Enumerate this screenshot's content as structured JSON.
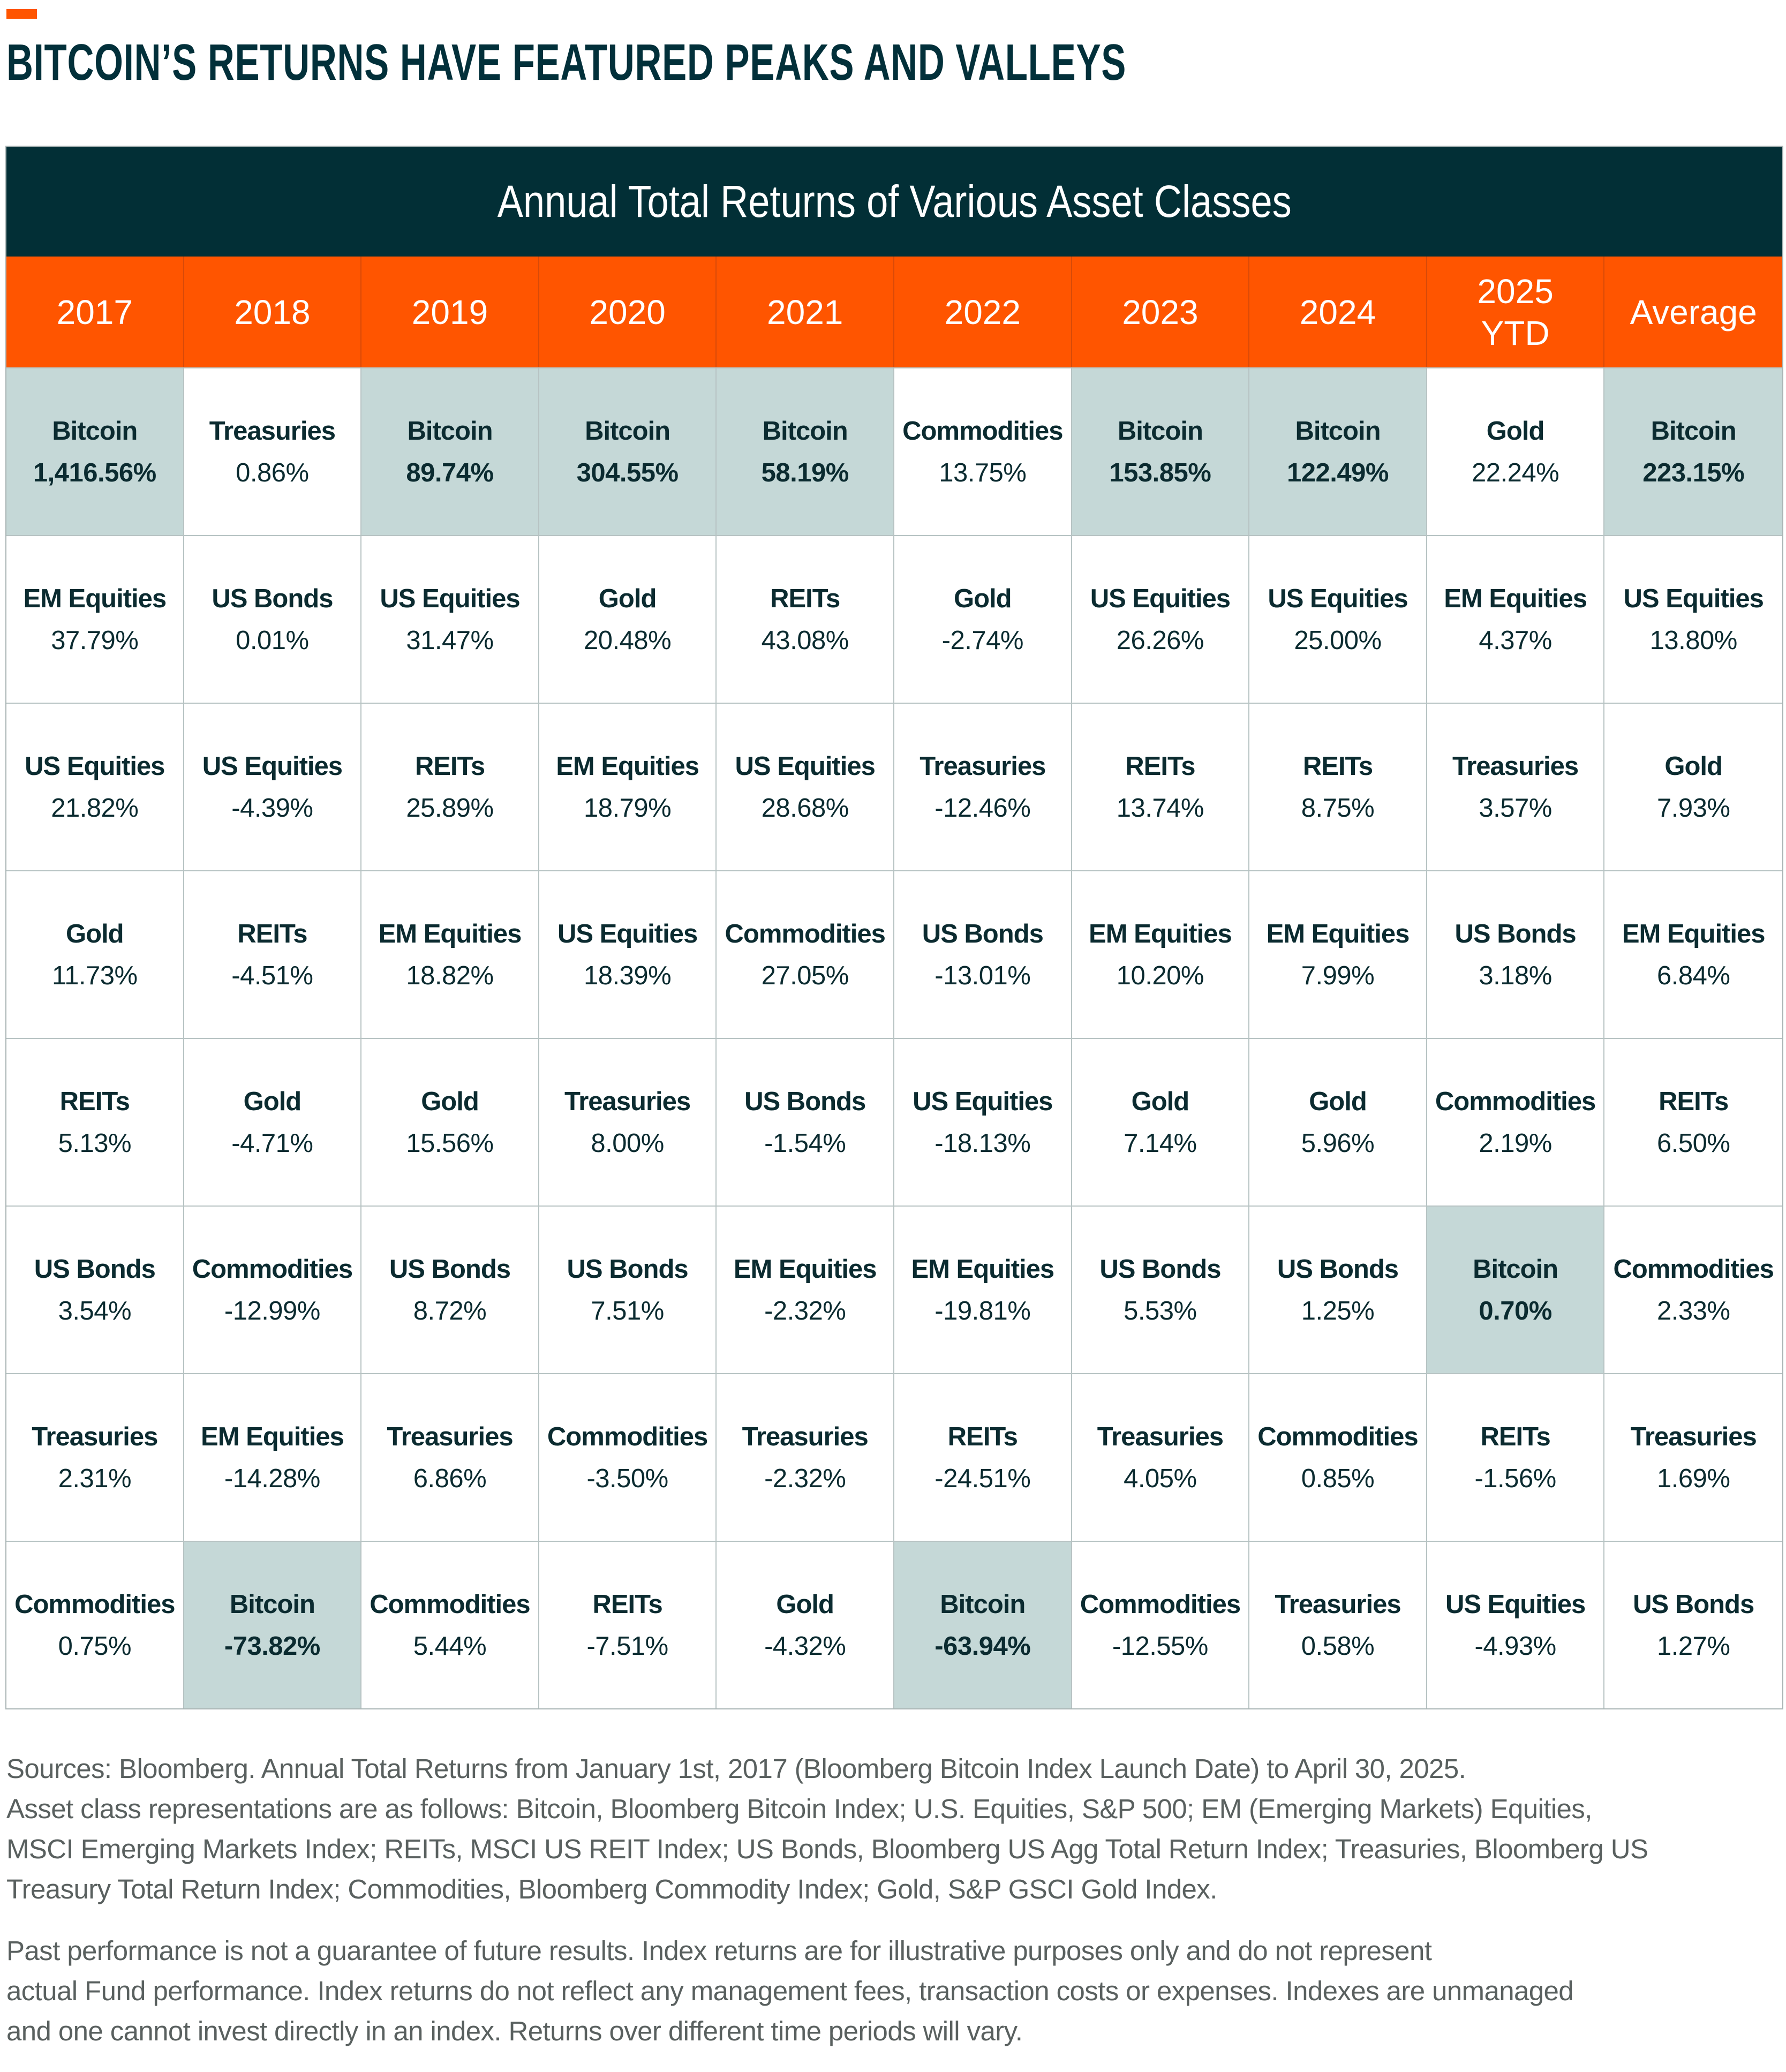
{
  "header": {
    "title": "BITCOIN’S RETURNS HAVE FEATURED PEAKS AND VALLEYS",
    "accent_color": "#ff5500"
  },
  "table": {
    "title": "Annual Total Returns of Various Asset Classes",
    "colors": {
      "title_bg": "#022f36",
      "header_bg": "#ff5500",
      "highlight_bg": "#c5d8d7"
    },
    "columns": [
      {
        "label": "2017",
        "cells": [
          {
            "name": "Bitcoin",
            "value": "1,416.56%",
            "highlight": true
          },
          {
            "name": "EM Equities",
            "value": "37.79%"
          },
          {
            "name": "US Equities",
            "value": "21.82%"
          },
          {
            "name": "Gold",
            "value": "11.73%"
          },
          {
            "name": "REITs",
            "value": "5.13%"
          },
          {
            "name": "US Bonds",
            "value": "3.54%"
          },
          {
            "name": "Treasuries",
            "value": "2.31%"
          },
          {
            "name": "Commodities",
            "value": "0.75%"
          }
        ]
      },
      {
        "label": "2018",
        "cells": [
          {
            "name": "Treasuries",
            "value": "0.86%"
          },
          {
            "name": "US Bonds",
            "value": "0.01%"
          },
          {
            "name": "US Equities",
            "value": "-4.39%"
          },
          {
            "name": "REITs",
            "value": "-4.51%"
          },
          {
            "name": "Gold",
            "value": "-4.71%"
          },
          {
            "name": "Commodities",
            "value": "-12.99%"
          },
          {
            "name": "EM Equities",
            "value": "-14.28%"
          },
          {
            "name": "Bitcoin",
            "value": "-73.82%",
            "highlight": true
          }
        ]
      },
      {
        "label": "2019",
        "cells": [
          {
            "name": "Bitcoin",
            "value": "89.74%",
            "highlight": true
          },
          {
            "name": "US Equities",
            "value": "31.47%"
          },
          {
            "name": "REITs",
            "value": "25.89%"
          },
          {
            "name": "EM Equities",
            "value": "18.82%"
          },
          {
            "name": "Gold",
            "value": "15.56%"
          },
          {
            "name": "US Bonds",
            "value": "8.72%"
          },
          {
            "name": "Treasuries",
            "value": "6.86%"
          },
          {
            "name": "Commodities",
            "value": "5.44%"
          }
        ]
      },
      {
        "label": "2020",
        "cells": [
          {
            "name": "Bitcoin",
            "value": "304.55%",
            "highlight": true
          },
          {
            "name": "Gold",
            "value": "20.48%"
          },
          {
            "name": "EM Equities",
            "value": "18.79%"
          },
          {
            "name": "US Equities",
            "value": "18.39%"
          },
          {
            "name": "Treasuries",
            "value": "8.00%"
          },
          {
            "name": "US Bonds",
            "value": "7.51%"
          },
          {
            "name": "Commodities",
            "value": "-3.50%"
          },
          {
            "name": "REITs",
            "value": "-7.51%"
          }
        ]
      },
      {
        "label": "2021",
        "cells": [
          {
            "name": "Bitcoin",
            "value": "58.19%",
            "highlight": true
          },
          {
            "name": "REITs",
            "value": "43.08%"
          },
          {
            "name": "US Equities",
            "value": "28.68%"
          },
          {
            "name": "Commodities",
            "value": "27.05%"
          },
          {
            "name": "US Bonds",
            "value": "-1.54%"
          },
          {
            "name": "EM Equities",
            "value": "-2.32%"
          },
          {
            "name": "Treasuries",
            "value": "-2.32%"
          },
          {
            "name": "Gold",
            "value": "-4.32%"
          }
        ]
      },
      {
        "label": "2022",
        "cells": [
          {
            "name": "Commodities",
            "value": "13.75%"
          },
          {
            "name": "Gold",
            "value": "-2.74%"
          },
          {
            "name": "Treasuries",
            "value": "-12.46%"
          },
          {
            "name": "US Bonds",
            "value": "-13.01%"
          },
          {
            "name": "US Equities",
            "value": "-18.13%"
          },
          {
            "name": "EM Equities",
            "value": "-19.81%"
          },
          {
            "name": "REITs",
            "value": "-24.51%"
          },
          {
            "name": "Bitcoin",
            "value": "-63.94%",
            "highlight": true
          }
        ]
      },
      {
        "label": "2023",
        "cells": [
          {
            "name": "Bitcoin",
            "value": "153.85%",
            "highlight": true
          },
          {
            "name": "US Equities",
            "value": "26.26%"
          },
          {
            "name": "REITs",
            "value": "13.74%"
          },
          {
            "name": "EM Equities",
            "value": "10.20%"
          },
          {
            "name": "Gold",
            "value": "7.14%"
          },
          {
            "name": "US Bonds",
            "value": "5.53%"
          },
          {
            "name": "Treasuries",
            "value": "4.05%"
          },
          {
            "name": "Commodities",
            "value": "-12.55%"
          }
        ]
      },
      {
        "label": "2024",
        "cells": [
          {
            "name": "Bitcoin",
            "value": "122.49%",
            "highlight": true
          },
          {
            "name": "US Equities",
            "value": "25.00%"
          },
          {
            "name": "REITs",
            "value": "8.75%"
          },
          {
            "name": "EM Equities",
            "value": "7.99%"
          },
          {
            "name": "Gold",
            "value": "5.96%"
          },
          {
            "name": "US Bonds",
            "value": "1.25%"
          },
          {
            "name": "Commodities",
            "value": "0.85%"
          },
          {
            "name": "Treasuries",
            "value": "0.58%"
          }
        ]
      },
      {
        "label": "2025\nYTD",
        "cells": [
          {
            "name": "Gold",
            "value": "22.24%"
          },
          {
            "name": "EM Equities",
            "value": "4.37%"
          },
          {
            "name": "Treasuries",
            "value": "3.57%"
          },
          {
            "name": "US Bonds",
            "value": "3.18%"
          },
          {
            "name": "Commodities",
            "value": "2.19%"
          },
          {
            "name": "Bitcoin",
            "value": "0.70%",
            "highlight": true
          },
          {
            "name": "REITs",
            "value": "-1.56%"
          },
          {
            "name": "US Equities",
            "value": "-4.93%"
          }
        ]
      },
      {
        "label": "Average",
        "cells": [
          {
            "name": "Bitcoin",
            "value": "223.15%",
            "highlight": true
          },
          {
            "name": "US Equities",
            "value": "13.80%"
          },
          {
            "name": "Gold",
            "value": "7.93%"
          },
          {
            "name": "EM Equities",
            "value": "6.84%"
          },
          {
            "name": "REITs",
            "value": "6.50%"
          },
          {
            "name": "Commodities",
            "value": "2.33%"
          },
          {
            "name": "Treasuries",
            "value": "1.69%"
          },
          {
            "name": "US Bonds",
            "value": "1.27%"
          }
        ]
      }
    ]
  },
  "footer": {
    "sources_lines": [
      "Sources: Bloomberg. Annual Total Returns from January 1st, 2017 (Bloomberg Bitcoin Index Launch Date) to April 30, 2025.",
      "Asset class representations are as follows: Bitcoin, Bloomberg Bitcoin Index; U.S. Equities, S&P 500; EM (Emerging Markets) Equities,",
      "MSCI Emerging Markets Index; REITs, MSCI US REIT Index; US Bonds, Bloomberg US Agg Total Return Index; Treasuries, Bloomberg US",
      "Treasury Total Return Index; Commodities, Bloomberg Commodity Index; Gold, S&P GSCI Gold Index."
    ],
    "disclaimer_lines": [
      "Past performance is not a guarantee of future results. Index returns are for illustrative purposes only and do not represent",
      "actual Fund performance. Index returns do not reflect any management fees, transaction costs or expenses. Indexes are unmanaged",
      "and one cannot invest directly in an index. Returns over different time periods will vary."
    ]
  }
}
